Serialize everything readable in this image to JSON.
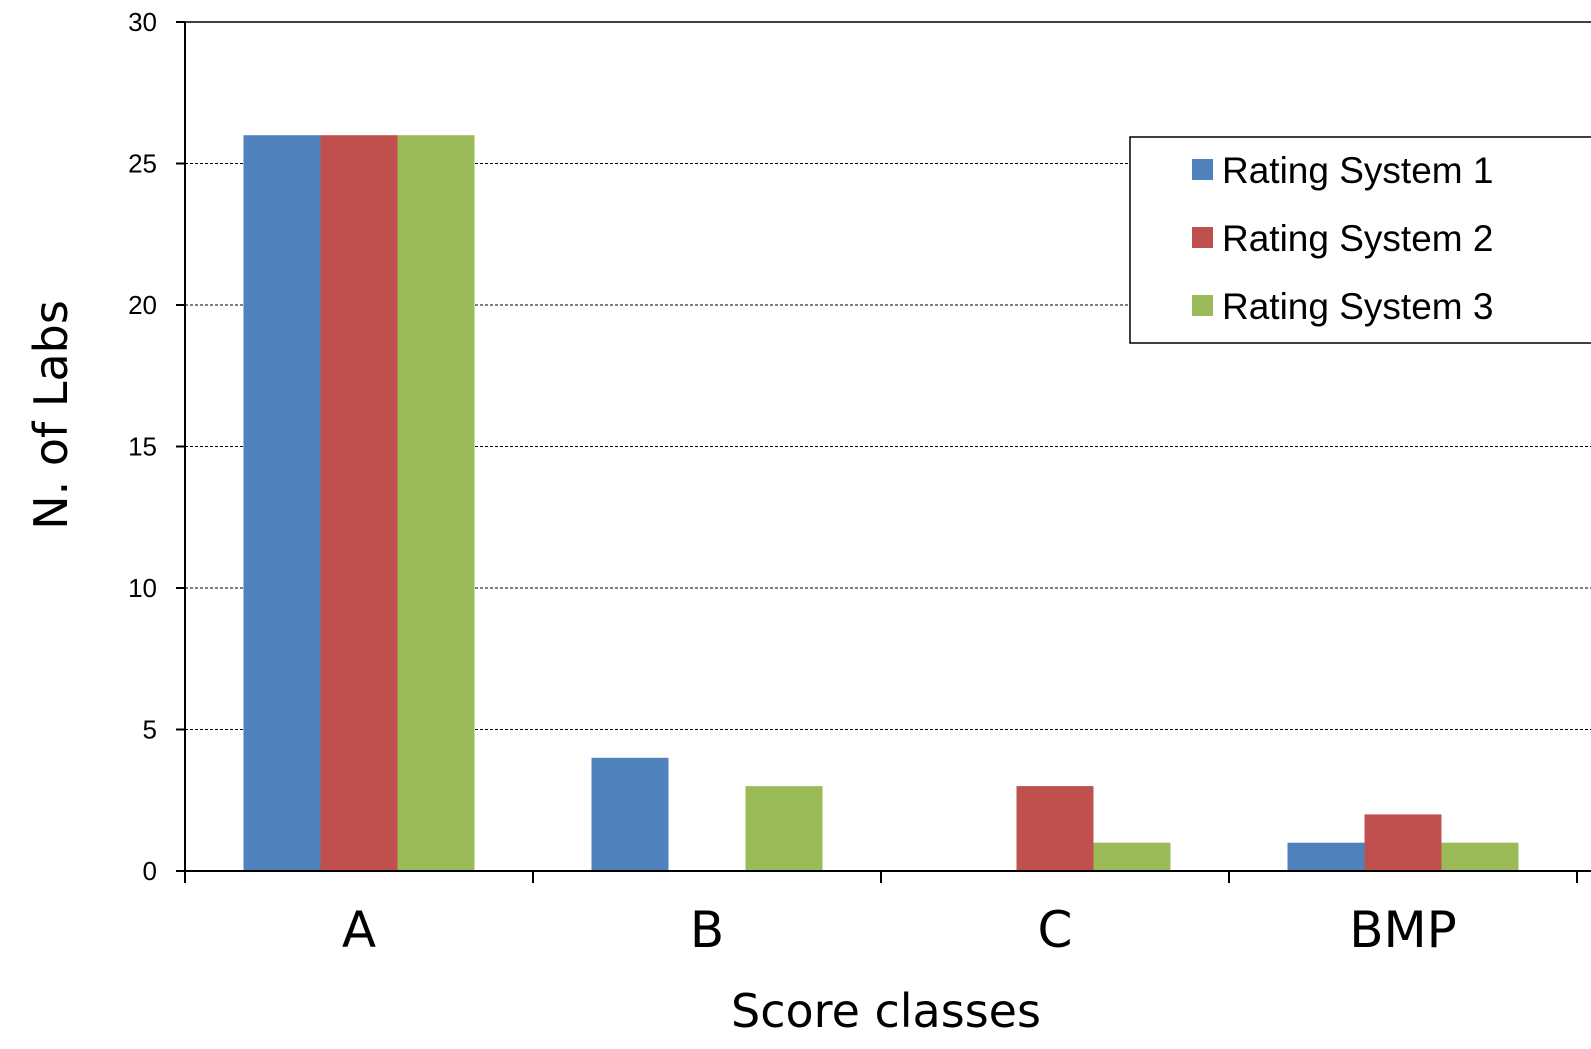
{
  "chart_data": {
    "type": "bar",
    "title": "",
    "xlabel": "Score classes",
    "ylabel": "N. of Labs",
    "categories": [
      "A",
      "B",
      "C",
      "BMP"
    ],
    "series": [
      {
        "name": "Rating System 1",
        "values": [
          26,
          4,
          0,
          1
        ],
        "color": "#4F81BD"
      },
      {
        "name": "Rating System 2",
        "values": [
          26,
          0,
          3,
          2
        ],
        "color": "#C0504D"
      },
      {
        "name": "Rating System 3",
        "values": [
          26,
          3,
          1,
          1
        ],
        "color": "#9BBB59"
      }
    ],
    "ylim": [
      0,
      30
    ],
    "yticks": [
      0,
      5,
      10,
      15,
      20,
      25,
      30
    ],
    "grid": "horizontal dashed",
    "legend": "top-right"
  }
}
